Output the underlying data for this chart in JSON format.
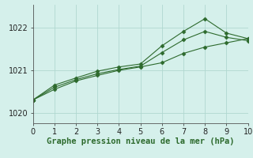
{
  "background_color": "#d5f0eb",
  "grid_color": "#b0d8d0",
  "line_color": "#2d6a2d",
  "x_data": [
    0,
    1,
    2,
    3,
    4,
    5,
    6,
    7,
    8,
    9,
    10
  ],
  "series1": [
    1020.3,
    1020.55,
    1020.75,
    1020.88,
    1021.0,
    1021.08,
    1021.18,
    1021.4,
    1021.55,
    1021.65,
    1021.75
  ],
  "series2": [
    1020.3,
    1020.6,
    1020.78,
    1020.92,
    1021.02,
    1021.1,
    1021.42,
    1021.72,
    1021.92,
    1021.78,
    1021.7
  ],
  "series3": [
    1020.3,
    1020.65,
    1020.82,
    1020.98,
    1021.08,
    1021.15,
    1021.58,
    1021.92,
    1022.22,
    1021.88,
    1021.75
  ],
  "ylim": [
    1019.75,
    1022.55
  ],
  "yticks": [
    1020,
    1021,
    1022
  ],
  "xlim": [
    0,
    10
  ],
  "xticks": [
    0,
    1,
    2,
    3,
    4,
    5,
    6,
    7,
    8,
    9,
    10
  ],
  "xlabel": "Graphe pression niveau de la mer (hPa)",
  "xlabel_fontsize": 7.5,
  "tick_fontsize": 7,
  "marker": "D",
  "marker_size": 2.5,
  "linewidth": 0.8,
  "figsize": [
    3.2,
    2.0
  ],
  "dpi": 100
}
